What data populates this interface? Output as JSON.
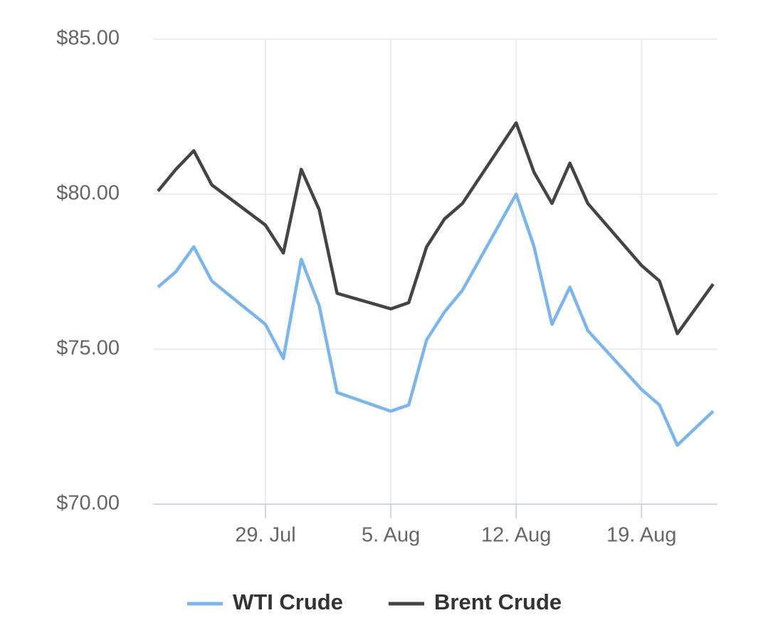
{
  "chart_data": {
    "type": "line",
    "x": [
      "23. Jul",
      "24. Jul",
      "25. Jul",
      "26. Jul",
      "29. Jul",
      "30. Jul",
      "31. Jul",
      "1. Aug",
      "2. Aug",
      "5. Aug",
      "6. Aug",
      "7. Aug",
      "8. Aug",
      "9. Aug",
      "12. Aug",
      "13. Aug",
      "14. Aug",
      "15. Aug",
      "16. Aug",
      "19. Aug",
      "20. Aug",
      "21. Aug",
      "23. Aug"
    ],
    "series": [
      {
        "name": "WTI Crude",
        "color": "#7cb5ec",
        "values": [
          77.0,
          77.5,
          78.3,
          77.2,
          75.8,
          74.7,
          77.9,
          76.4,
          73.6,
          73.0,
          73.2,
          75.3,
          76.2,
          76.9,
          80.0,
          78.3,
          75.8,
          77.0,
          75.6,
          73.7,
          73.2,
          71.9,
          73.0
        ]
      },
      {
        "name": "Brent Crude",
        "color": "#434348",
        "values": [
          80.1,
          80.8,
          81.4,
          80.3,
          79.0,
          78.1,
          80.8,
          79.5,
          76.8,
          76.3,
          76.5,
          78.3,
          79.2,
          79.7,
          82.3,
          80.7,
          79.7,
          81.0,
          79.7,
          77.7,
          77.2,
          75.5,
          77.1
        ]
      }
    ],
    "xlim": [
      "23. Jul",
      "23. Aug"
    ],
    "xticks": [
      "29. Jul",
      "5. Aug",
      "12. Aug",
      "19. Aug"
    ],
    "ylim": [
      70,
      85
    ],
    "yticks": [
      {
        "value": 70,
        "label": "$70.00"
      },
      {
        "value": 75,
        "label": "$75.00"
      },
      {
        "value": 80,
        "label": "$80.00"
      },
      {
        "value": 85,
        "label": "$85.00"
      }
    ],
    "grid": true,
    "legend": "bottom"
  }
}
